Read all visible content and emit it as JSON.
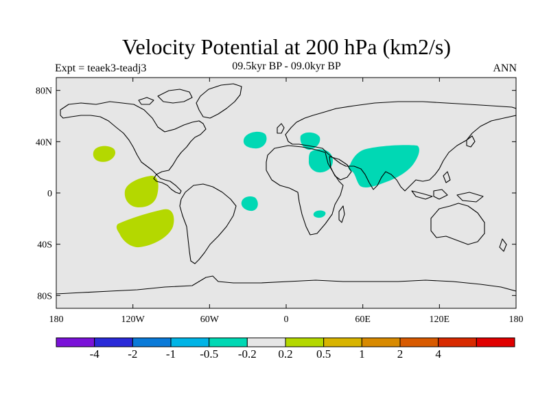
{
  "header": {
    "title": "Velocity Potential at 200 hPa (km2/s)",
    "subtitle": "09.5kyr BP - 09.0kyr BP",
    "left_label": "Expt = teaek3-teadj3",
    "right_label": "ANN"
  },
  "map": {
    "projection": "cylindrical-equidistant",
    "lon_range": [
      -180,
      180
    ],
    "lat_range": [
      -90,
      90
    ],
    "background_color": "#e6e6e6",
    "lon_ticks": [
      {
        "lon": -180,
        "label": "180"
      },
      {
        "lon": -120,
        "label": "120W"
      },
      {
        "lon": -60,
        "label": "60W"
      },
      {
        "lon": 0,
        "label": "0"
      },
      {
        "lon": 60,
        "label": "60E"
      },
      {
        "lon": 120,
        "label": "120E"
      },
      {
        "lon": 180,
        "label": "180"
      }
    ],
    "lat_ticks": [
      {
        "lat": 80,
        "label": "80N"
      },
      {
        "lat": 40,
        "label": "40N"
      },
      {
        "lat": 0,
        "label": "0"
      },
      {
        "lat": -40,
        "label": "40S"
      },
      {
        "lat": -80,
        "label": "80S"
      }
    ]
  },
  "colorbar": {
    "colors": [
      "#7a12d8",
      "#2a2ad8",
      "#0a7ad8",
      "#00b4e6",
      "#00d8b4",
      "#e6e6e6",
      "#b4d800",
      "#d8b400",
      "#d88a00",
      "#d85a00",
      "#d82a00",
      "#e00000"
    ],
    "labels": [
      "-4",
      "-2",
      "-1",
      "-0.5",
      "-0.2",
      "0.2",
      "0.5",
      "1",
      "2",
      "4"
    ]
  }
}
